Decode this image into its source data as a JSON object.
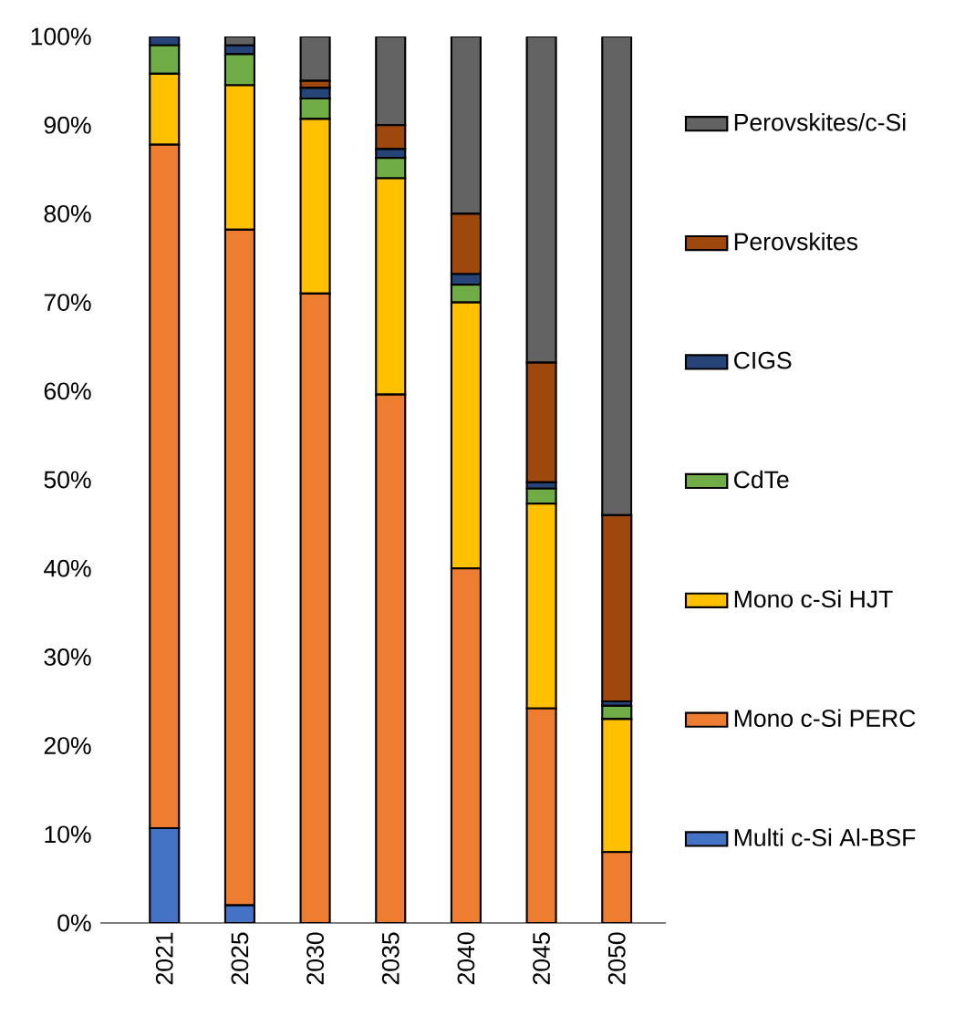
{
  "chart_data": {
    "type": "bar",
    "stacked": true,
    "legend": "right",
    "categories": [
      "2021",
      "2025",
      "2030",
      "2035",
      "2040",
      "2045",
      "2050"
    ],
    "ylim": [
      0,
      100
    ],
    "yticks": [
      {
        "value": 0,
        "label": "0%"
      },
      {
        "value": 10,
        "label": "10%"
      },
      {
        "value": 20,
        "label": "20%"
      },
      {
        "value": 30,
        "label": "30%"
      },
      {
        "value": 40,
        "label": "40%"
      },
      {
        "value": 50,
        "label": "50%"
      },
      {
        "value": 60,
        "label": "60%"
      },
      {
        "value": 70,
        "label": "70%"
      },
      {
        "value": 80,
        "label": "80%"
      },
      {
        "value": 90,
        "label": "90%"
      },
      {
        "value": 100,
        "label": "100%"
      }
    ],
    "series": [
      {
        "name": "Multi c-Si Al-BSF",
        "color": "#4472c4",
        "values": [
          10.7,
          2,
          0,
          0,
          0,
          0,
          0
        ]
      },
      {
        "name": "Mono c-Si PERC",
        "color": "#ed7d31",
        "values": [
          77.1,
          76.2,
          71,
          59.6,
          40,
          24.2,
          8
        ]
      },
      {
        "name": "Mono c-Si HJT",
        "color": "#ffc000",
        "values": [
          8,
          16.3,
          19.7,
          24.4,
          30,
          23.1,
          15
        ]
      },
      {
        "name": "CdTe",
        "color": "#70ad47",
        "values": [
          3.2,
          3.5,
          2.3,
          2.3,
          2,
          1.7,
          1.5
        ]
      },
      {
        "name": "CIGS",
        "color": "#264478",
        "values": [
          1,
          1,
          1.2,
          1,
          1.2,
          0.7,
          0.5
        ]
      },
      {
        "name": "Perovskites",
        "color": "#9e480e",
        "values": [
          0,
          0,
          0.8,
          2.7,
          6.8,
          13.5,
          21
        ]
      },
      {
        "name": "Perovskites/c-Si",
        "color": "#636363",
        "values": [
          0,
          1,
          5,
          10,
          20,
          36.8,
          54
        ]
      }
    ]
  }
}
